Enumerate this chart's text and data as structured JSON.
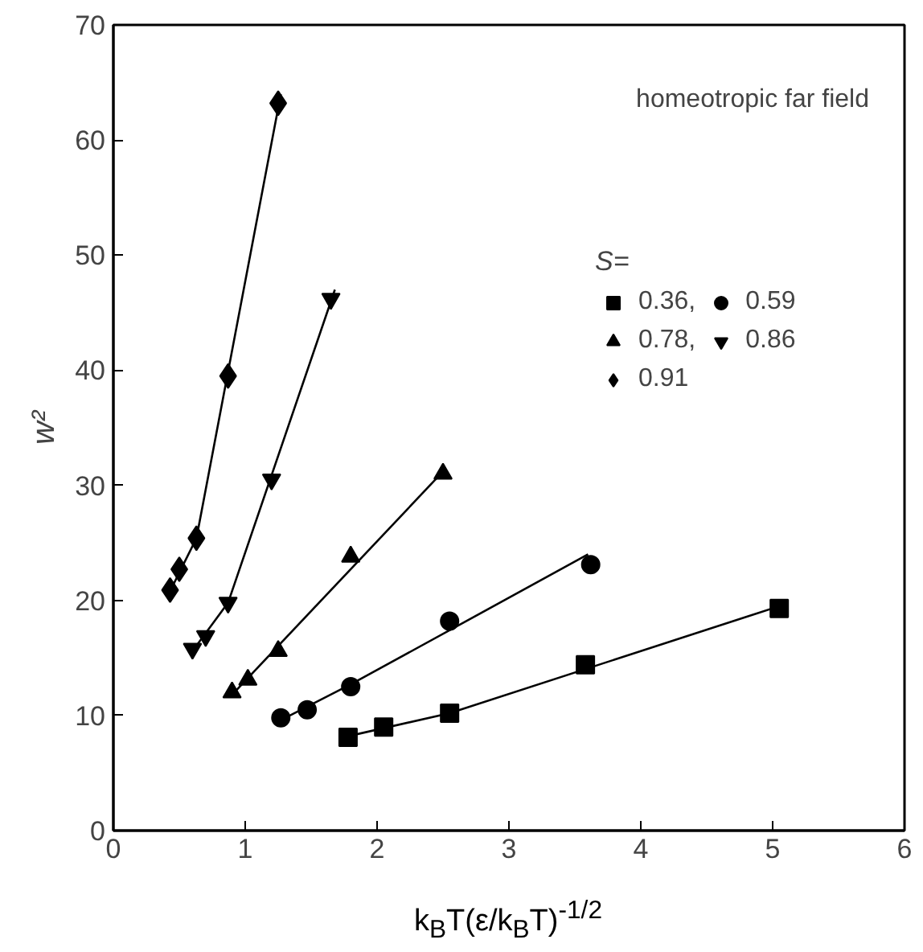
{
  "chart_data": {
    "type": "scatter",
    "xlabel": "k$_{B}$T(ε/k$_{B}$T)$^{-1/2}$",
    "ylabel": "w²",
    "legend_title": "S=",
    "annotations": [
      "homeotropic far field"
    ],
    "xlim": [
      0,
      6
    ],
    "ylim": [
      0,
      70
    ],
    "xticks": [
      0,
      1,
      2,
      3,
      4,
      5,
      6
    ],
    "yticks": [
      0,
      10,
      20,
      30,
      40,
      50,
      60,
      70
    ],
    "grid": false,
    "legend": "top right",
    "series": [
      {
        "name": "0.36,",
        "color": "#000000",
        "marker": "square",
        "x": [
          1.78,
          2.05,
          2.55,
          3.58,
          5.05
        ],
        "values": [
          8.1,
          9.0,
          10.2,
          14.4,
          19.3
        ]
      },
      {
        "name": "0.78,",
        "color": "#000000",
        "marker": "triangle",
        "x": [
          0.9,
          1.02,
          1.25,
          1.8,
          2.5
        ],
        "values": [
          12.0,
          13.1,
          15.6,
          23.8,
          31.0
        ]
      },
      {
        "name": "0.91",
        "color": "#000000",
        "marker": "diamond",
        "x": [
          0.43,
          0.5,
          0.63,
          0.87,
          1.25
        ],
        "values": [
          20.9,
          22.7,
          25.4,
          39.5,
          63.2
        ]
      },
      {
        "name": "0.59",
        "color": "#000000",
        "marker": "circle",
        "x": [
          1.27,
          1.47,
          1.8,
          2.55,
          3.62
        ],
        "values": [
          9.8,
          10.5,
          12.5,
          18.2,
          23.1
        ]
      },
      {
        "name": "0.86",
        "color": "#000000",
        "x": [
          0.6,
          0.7,
          0.87,
          1.2,
          1.65
        ],
        "values": [
          15.8,
          16.9,
          19.8,
          30.5,
          46.2
        ]
      },
      {
        "type": "line",
        "color": "#000000",
        "x": [
          1.78,
          2.55,
          5.05
        ],
        "values": [
          8.2,
          10.2,
          19.5
        ]
      },
      {
        "type": "line",
        "color": "#000000",
        "x": [
          1.27,
          1.8,
          3.6
        ],
        "values": [
          9.6,
          12.7,
          24.0
        ]
      },
      {
        "type": "line",
        "color": "#000000",
        "x": [
          0.9,
          2.5
        ],
        "values": [
          11.8,
          31.2
        ]
      },
      {
        "type": "line",
        "color": "#000000",
        "x": [
          0.6,
          0.87,
          1.68
        ],
        "values": [
          15.6,
          19.8,
          47.0
        ]
      },
      {
        "type": "line",
        "color": "#000000",
        "x": [
          0.43,
          0.63,
          1.27
        ],
        "values": [
          20.8,
          25.4,
          64.0
        ]
      }
    ]
  }
}
